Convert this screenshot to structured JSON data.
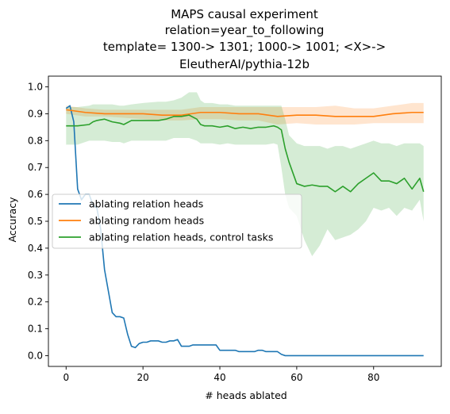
{
  "chart_data": {
    "type": "line",
    "title_lines": [
      "MAPS causal experiment",
      "relation=year_to_following",
      "template= 1300-> 1301; 1000-> 1001; <X>->",
      "EleutherAI/pythia-12b"
    ],
    "xlabel": "# heads ablated",
    "ylabel": "Accuracy",
    "xlim": [
      -4.6,
      97.6
    ],
    "ylim": [
      -0.04,
      1.04
    ],
    "xticks": [
      0,
      20,
      40,
      60,
      80
    ],
    "yticks": [
      0.0,
      0.1,
      0.2,
      0.3,
      0.4,
      0.5,
      0.6,
      0.7,
      0.8,
      0.9,
      1.0
    ],
    "xtick_labels": [
      "0",
      "20",
      "40",
      "60",
      "80"
    ],
    "ytick_labels": [
      "0.0",
      "0.1",
      "0.2",
      "0.3",
      "0.4",
      "0.5",
      "0.6",
      "0.7",
      "0.8",
      "0.9",
      "1.0"
    ],
    "grid": false,
    "legend_position": "center-left",
    "series": [
      {
        "name": "ablating relation heads",
        "color": "#1f77b4",
        "x": [
          0,
          1,
          2,
          3,
          4,
          5,
          6,
          7,
          8,
          9,
          10,
          11,
          12,
          13,
          14,
          15,
          16,
          17,
          18,
          19,
          20,
          21,
          22,
          23,
          24,
          25,
          26,
          27,
          28,
          29,
          30,
          31,
          32,
          33,
          34,
          35,
          36,
          37,
          38,
          39,
          40,
          41,
          42,
          43,
          44,
          45,
          46,
          47,
          48,
          49,
          50,
          51,
          52,
          53,
          54,
          55,
          56,
          57,
          60,
          70,
          80,
          93
        ],
        "y": [
          0.92,
          0.93,
          0.87,
          0.62,
          0.58,
          0.6,
          0.6,
          0.56,
          0.55,
          0.47,
          0.32,
          0.24,
          0.16,
          0.145,
          0.145,
          0.14,
          0.08,
          0.035,
          0.03,
          0.045,
          0.05,
          0.05,
          0.055,
          0.055,
          0.055,
          0.05,
          0.05,
          0.055,
          0.055,
          0.06,
          0.035,
          0.035,
          0.035,
          0.04,
          0.04,
          0.04,
          0.04,
          0.04,
          0.04,
          0.04,
          0.02,
          0.02,
          0.02,
          0.02,
          0.02,
          0.015,
          0.015,
          0.015,
          0.015,
          0.015,
          0.02,
          0.02,
          0.015,
          0.015,
          0.015,
          0.015,
          0.005,
          0.0,
          0.0,
          0.0,
          0.0,
          0.0
        ]
      },
      {
        "name": "ablating random heads",
        "color": "#ff7f0e",
        "x": [
          0,
          5,
          10,
          15,
          20,
          25,
          30,
          35,
          40,
          45,
          50,
          55,
          60,
          65,
          70,
          75,
          80,
          85,
          90,
          93
        ],
        "y": [
          0.915,
          0.905,
          0.9,
          0.9,
          0.9,
          0.895,
          0.895,
          0.905,
          0.905,
          0.9,
          0.9,
          0.89,
          0.895,
          0.895,
          0.89,
          0.89,
          0.89,
          0.9,
          0.905,
          0.905
        ],
        "lower": [
          0.9,
          0.89,
          0.89,
          0.885,
          0.88,
          0.875,
          0.875,
          0.88,
          0.88,
          0.875,
          0.875,
          0.86,
          0.865,
          0.86,
          0.86,
          0.86,
          0.865,
          0.865,
          0.865,
          0.865
        ],
        "upper": [
          0.93,
          0.92,
          0.915,
          0.915,
          0.915,
          0.915,
          0.915,
          0.925,
          0.925,
          0.925,
          0.925,
          0.925,
          0.925,
          0.925,
          0.93,
          0.92,
          0.92,
          0.93,
          0.94,
          0.94
        ]
      },
      {
        "name": "ablating relation heads, control tasks",
        "color": "#2ca02c",
        "x": [
          0,
          3,
          6,
          7,
          8,
          10,
          12,
          14,
          15,
          17,
          20,
          24,
          26,
          28,
          30,
          32,
          34,
          35,
          36,
          38,
          40,
          42,
          44,
          46,
          48,
          50,
          52,
          54,
          55,
          56,
          57,
          58,
          60,
          62,
          64,
          66,
          68,
          70,
          72,
          74,
          76,
          78,
          80,
          82,
          84,
          86,
          88,
          90,
          92,
          93
        ],
        "y": [
          0.855,
          0.855,
          0.86,
          0.87,
          0.875,
          0.88,
          0.87,
          0.865,
          0.86,
          0.875,
          0.875,
          0.875,
          0.88,
          0.89,
          0.89,
          0.895,
          0.88,
          0.86,
          0.855,
          0.855,
          0.85,
          0.855,
          0.845,
          0.85,
          0.845,
          0.85,
          0.85,
          0.855,
          0.85,
          0.84,
          0.77,
          0.72,
          0.64,
          0.63,
          0.635,
          0.63,
          0.63,
          0.61,
          0.63,
          0.61,
          0.64,
          0.66,
          0.68,
          0.65,
          0.65,
          0.64,
          0.66,
          0.62,
          0.66,
          0.61
        ],
        "lower": [
          0.785,
          0.785,
          0.8,
          0.8,
          0.8,
          0.8,
          0.795,
          0.795,
          0.79,
          0.8,
          0.8,
          0.8,
          0.8,
          0.81,
          0.81,
          0.81,
          0.8,
          0.79,
          0.79,
          0.79,
          0.785,
          0.79,
          0.785,
          0.785,
          0.785,
          0.785,
          0.785,
          0.79,
          0.785,
          0.7,
          0.6,
          0.55,
          0.52,
          0.43,
          0.37,
          0.41,
          0.47,
          0.43,
          0.44,
          0.45,
          0.47,
          0.5,
          0.55,
          0.54,
          0.55,
          0.52,
          0.55,
          0.54,
          0.58,
          0.5
        ],
        "upper": [
          0.925,
          0.925,
          0.93,
          0.935,
          0.935,
          0.935,
          0.935,
          0.93,
          0.93,
          0.935,
          0.94,
          0.945,
          0.945,
          0.95,
          0.96,
          0.98,
          0.98,
          0.95,
          0.94,
          0.94,
          0.935,
          0.935,
          0.93,
          0.93,
          0.93,
          0.93,
          0.93,
          0.93,
          0.93,
          0.93,
          0.88,
          0.82,
          0.79,
          0.78,
          0.78,
          0.78,
          0.77,
          0.78,
          0.78,
          0.77,
          0.78,
          0.79,
          0.8,
          0.79,
          0.79,
          0.78,
          0.79,
          0.79,
          0.79,
          0.78
        ]
      }
    ]
  }
}
